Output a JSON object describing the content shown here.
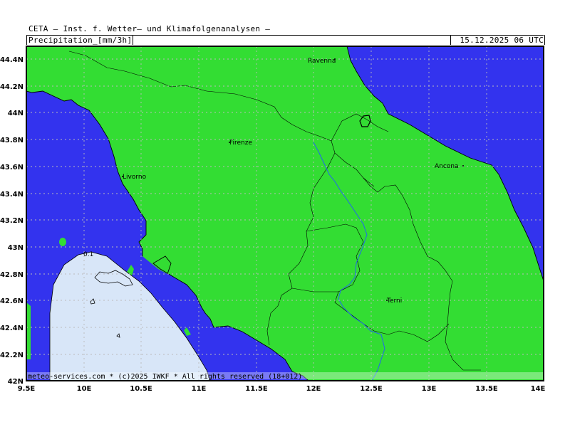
{
  "header": {
    "title": "CETA — Inst. f. Wetter— und Klimafolgenanalysen —",
    "field": "Precipitation_[mm/3h]",
    "date": "15.12.2025 06 UTC"
  },
  "axes": {
    "lat_ticks": [
      "44.4N",
      "44.2N",
      "44N",
      "43.8N",
      "43.6N",
      "43.4N",
      "43.2N",
      "43N",
      "42.8N",
      "42.6N",
      "42.4N",
      "42.2N",
      "42N"
    ],
    "lon_ticks": [
      "9.5E",
      "10E",
      "10.5E",
      "11E",
      "11.5E",
      "12E",
      "12.5E",
      "13E",
      "13.5E",
      "14E"
    ]
  },
  "cities": {
    "ravenna": "Ravenna",
    "firenze": "Firenze",
    "livorno": "Livorno",
    "ancona": "Ancona",
    "terni": "Terni"
  },
  "contour_label": "0.1",
  "footer": "meteo-services.com * (c)2025 IWKF * All rights reserved (18+012)",
  "colors": {
    "sea": "#3333ee",
    "land_dry": "#33dd33",
    "precip_01": "#d8e6f8",
    "river": "#2266ee",
    "grid": "#bbbbbb"
  }
}
